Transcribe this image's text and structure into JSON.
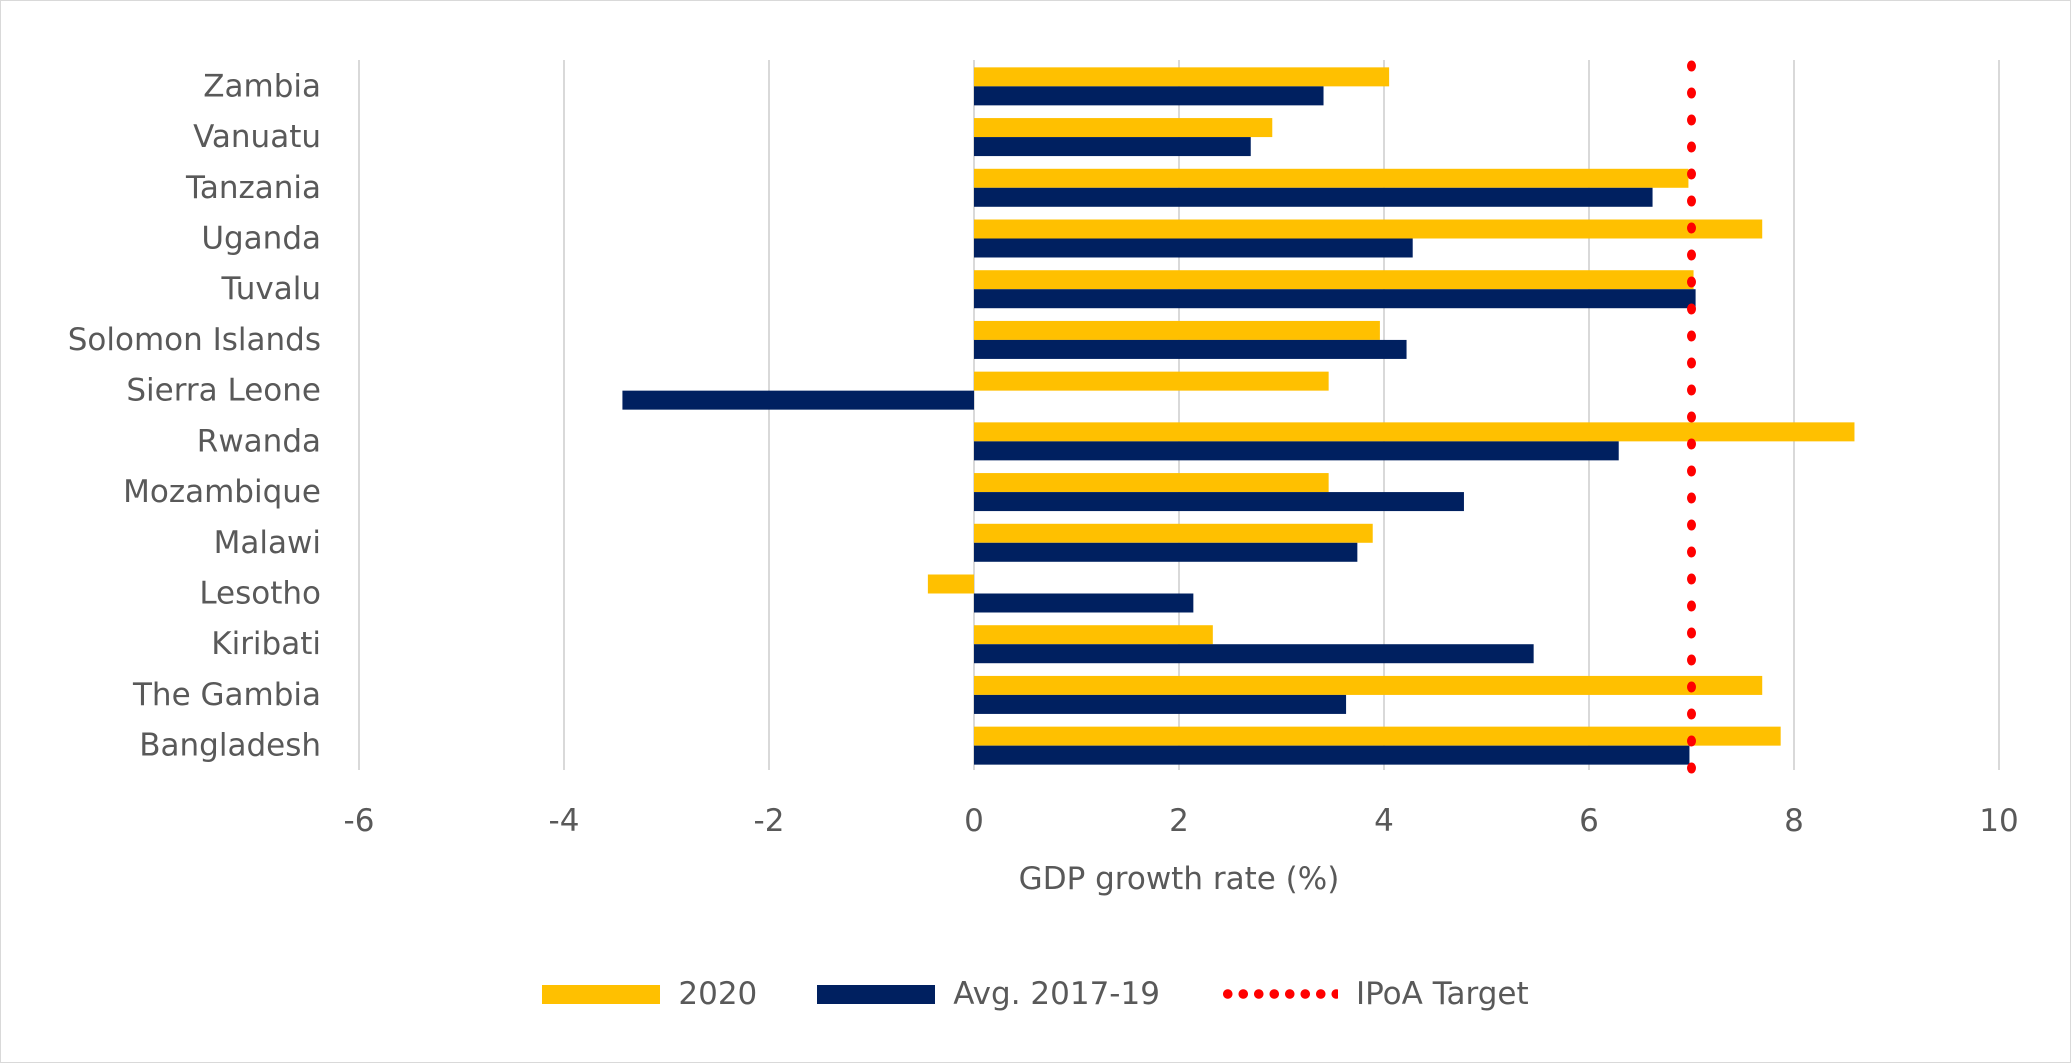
{
  "chart_data": {
    "type": "bar",
    "orientation": "horizontal",
    "categories": [
      "Zambia",
      "Vanuatu",
      "Tanzania",
      "Uganda",
      "Tuvalu",
      "Solomon Islands",
      "Sierra Leone",
      "Rwanda",
      "Mozambique",
      "Malawi",
      "Lesotho",
      "Kiribati",
      "The Gambia",
      "Bangladesh"
    ],
    "series": [
      {
        "name": "2020",
        "color": "#FFC000",
        "values": [
          4.05,
          2.91,
          6.97,
          7.69,
          7.02,
          3.96,
          3.46,
          8.59,
          3.46,
          3.89,
          -0.45,
          2.33,
          7.69,
          7.87
        ]
      },
      {
        "name": "Avg. 2017-19",
        "color": "#002060",
        "values": [
          3.41,
          2.7,
          6.62,
          4.28,
          7.04,
          4.22,
          -3.43,
          6.29,
          4.78,
          3.74,
          2.14,
          5.46,
          3.63,
          6.98
        ]
      }
    ],
    "reference_line": {
      "name": "IPoA Target",
      "value": 7,
      "color": "#FF0000",
      "style": "dotted"
    },
    "xlabel": "GDP growth rate (%)",
    "ylabel": "",
    "xlim": [
      -6,
      10
    ],
    "xticks": [
      "-6",
      "-4",
      "-2",
      "0",
      "2",
      "4",
      "6",
      "8",
      "10"
    ],
    "grid": "vertical",
    "legend": "bottom"
  }
}
